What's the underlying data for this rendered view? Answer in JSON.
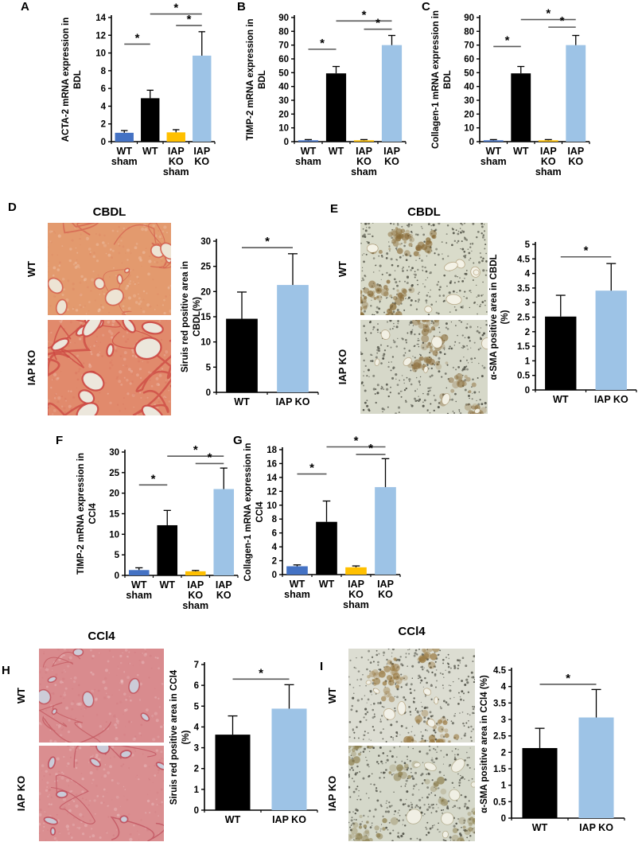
{
  "colors": {
    "background": "#ffffff",
    "axis": "#000000",
    "sig_line": "#595959",
    "bar_blue": "#4472c4",
    "bar_black": "#000000",
    "bar_yellow": "#ffc000",
    "bar_lightblue": "#9dc3e6"
  },
  "panels": {
    "A": {
      "letter": "A"
    },
    "B": {
      "letter": "B"
    },
    "C": {
      "letter": "C"
    },
    "D": {
      "letter": "D",
      "title": "CBDL",
      "rows": [
        {
          "label": "WT"
        },
        {
          "label": "IAP KO"
        }
      ]
    },
    "E": {
      "letter": "E",
      "title": "CBDL",
      "rows": [
        {
          "label": "WT"
        },
        {
          "label": "IAP KO"
        }
      ]
    },
    "F": {
      "letter": "F"
    },
    "G": {
      "letter": "G"
    },
    "H": {
      "letter": "H",
      "title": "CCl4",
      "rows": [
        {
          "label": "WT"
        },
        {
          "label": "IAP KO"
        }
      ]
    },
    "I": {
      "letter": "I",
      "title": "CCl4",
      "rows": [
        {
          "label": "WT"
        },
        {
          "label": "IAP KO"
        }
      ]
    }
  },
  "micrographs": {
    "D_WT": {
      "stain": "sirius-red",
      "base": "#e39a6e",
      "streak": "#d4604f",
      "vessel": "#ede4d4",
      "density": 0.5,
      "vessel_scale": 1.0
    },
    "D_KO": {
      "stain": "sirius-red",
      "base": "#e18a6c",
      "streak": "#cc4742",
      "vessel": "#ece7dc",
      "density": 1.0,
      "vessel_scale": 1.6
    },
    "E_WT": {
      "stain": "ihc",
      "base": "#d9dbca",
      "dot": "#55564a",
      "brown": "#8a6c38",
      "vessel": "#f4f2e6",
      "density": 0.6
    },
    "E_KO": {
      "stain": "ihc",
      "base": "#d6d8c9",
      "dot": "#4d4e44",
      "brown": "#927647",
      "vessel": "#f2f0e4",
      "density": 0.8
    },
    "H_WT": {
      "stain": "sirius-red",
      "base": "#d98b8e",
      "streak": "#c2555e",
      "vessel": "#ccccd8",
      "density": 0.35,
      "vessel_scale": 0.8
    },
    "H_KO": {
      "stain": "sirius-red",
      "base": "#da8e90",
      "streak": "#bf4f5c",
      "vessel": "#c9cbd8",
      "density": 0.55,
      "vessel_scale": 0.8
    },
    "I_WT": {
      "stain": "ihc",
      "base": "#dcddd2",
      "dot": "#53544a",
      "brown": "#9a7a42",
      "vessel": "#f2f1e8",
      "density": 0.5
    },
    "I_KO": {
      "stain": "ihc",
      "base": "#d5d8ca",
      "dot": "#4f5046",
      "brown": "#8e8050",
      "vessel": "#f0efe4",
      "density": 0.7
    }
  },
  "chart_data": [
    {
      "id": "A",
      "panel": "A",
      "type": "bar",
      "ylabel_lines": [
        "ACTA-2 mRNA expression in",
        "BDL"
      ],
      "ylim": [
        0,
        14
      ],
      "ytick": 2,
      "categories": [
        "WT\nsham",
        "WT",
        "IAP\nKO\nsham",
        "IAP\nKO"
      ],
      "values": [
        1.0,
        4.9,
        1.05,
        9.7
      ],
      "errors": [
        0.25,
        0.9,
        0.3,
        2.7
      ],
      "bar_colors": [
        "#4472c4",
        "#000000",
        "#ffc000",
        "#9dc3e6"
      ],
      "significance": [
        {
          "from": 0,
          "to": 1,
          "y": 11,
          "label": "*"
        },
        {
          "from": 1,
          "to": 3,
          "y": 14.4,
          "label": "*"
        },
        {
          "from": 2,
          "to": 3,
          "y": 13.1,
          "label": "*"
        }
      ]
    },
    {
      "id": "B",
      "panel": "B",
      "type": "bar",
      "ylabel_lines": [
        "TIMP-2 mRNA expression in",
        "BDL"
      ],
      "ylim": [
        0,
        90
      ],
      "ytick": 10,
      "categories": [
        "WT\nsham",
        "WT",
        "IAP\nKO\nsham",
        "IAP\nKO"
      ],
      "values": [
        1.0,
        49.5,
        1.0,
        70.0
      ],
      "errors": [
        0.5,
        5.0,
        0.5,
        7.0
      ],
      "bar_colors": [
        "#4472c4",
        "#000000",
        "#ffc000",
        "#9dc3e6"
      ],
      "significance": [
        {
          "from": 0,
          "to": 1,
          "y": 67,
          "label": "*"
        },
        {
          "from": 1,
          "to": 3,
          "y": 87.5,
          "label": "*"
        },
        {
          "from": 2,
          "to": 3,
          "y": 81.5,
          "label": "*"
        }
      ]
    },
    {
      "id": "C",
      "panel": "C",
      "type": "bar",
      "ylabel_lines": [
        "Collagen-1 mRNA expression in",
        "BDL"
      ],
      "ylim": [
        0,
        90
      ],
      "ytick": 10,
      "categories": [
        "WT\nsham",
        "WT",
        "IAP\nKO\nsham",
        "IAP\nKO"
      ],
      "values": [
        1.0,
        49.5,
        1.0,
        70.0
      ],
      "errors": [
        0.5,
        5.0,
        0.5,
        7.0
      ],
      "bar_colors": [
        "#4472c4",
        "#000000",
        "#ffc000",
        "#9dc3e6"
      ],
      "significance": [
        {
          "from": 0,
          "to": 1,
          "y": 69,
          "label": "*"
        },
        {
          "from": 1,
          "to": 3,
          "y": 88.5,
          "label": "*"
        },
        {
          "from": 2,
          "to": 3,
          "y": 83,
          "label": "*"
        }
      ]
    },
    {
      "id": "D",
      "panel": "D",
      "type": "bar",
      "ylabel_lines": [
        "Siruis red positive area in",
        "CBDL(%)"
      ],
      "ylim": [
        0,
        30
      ],
      "ytick": 5,
      "categories": [
        "WT",
        "IAP KO"
      ],
      "values": [
        14.6,
        21.3
      ],
      "errors": [
        5.3,
        6.2
      ],
      "bar_colors": [
        "#000000",
        "#9dc3e6"
      ],
      "significance": [
        {
          "from": 0,
          "to": 1,
          "y": 28.7,
          "label": "*"
        }
      ]
    },
    {
      "id": "E",
      "panel": "E",
      "type": "bar",
      "ylabel_lines": [
        "α-SMA positive area in CBDL",
        "(%)"
      ],
      "ylim": [
        0,
        5
      ],
      "ytick": 0.5,
      "categories": [
        "WT",
        "IAP KO"
      ],
      "values": [
        2.52,
        3.41
      ],
      "errors": [
        0.73,
        0.93
      ],
      "bar_colors": [
        "#000000",
        "#9dc3e6"
      ],
      "significance": [
        {
          "from": 0,
          "to": 1,
          "y": 4.57,
          "label": "*"
        }
      ]
    },
    {
      "id": "F",
      "panel": "F",
      "type": "bar",
      "ylabel_lines": [
        "TIMP-2 mRNA expression in",
        "CCl4"
      ],
      "ylim": [
        0,
        30
      ],
      "ytick": 5,
      "categories": [
        "WT\nsham",
        "WT",
        "IAP\nKO\nsham",
        "IAP\nKO"
      ],
      "values": [
        1.3,
        12.2,
        1.0,
        21.0
      ],
      "errors": [
        0.55,
        3.6,
        0.2,
        5.1
      ],
      "bar_colors": [
        "#4472c4",
        "#000000",
        "#ffc000",
        "#9dc3e6"
      ],
      "significance": [
        {
          "from": 0,
          "to": 1,
          "y": 22,
          "label": "*"
        },
        {
          "from": 1,
          "to": 3,
          "y": 29,
          "label": "*"
        },
        {
          "from": 2,
          "to": 3,
          "y": 27.2,
          "label": "*"
        }
      ]
    },
    {
      "id": "G",
      "panel": "G",
      "type": "bar",
      "ylabel_lines": [
        "Collagen-1 mRNA expression in",
        "CCl4"
      ],
      "ylim": [
        0,
        18
      ],
      "ytick": 2,
      "categories": [
        "WT\nsham",
        "WT",
        "IAP\nKO\nsham",
        "IAP\nKO"
      ],
      "values": [
        1.2,
        7.6,
        1.05,
        12.6
      ],
      "errors": [
        0.2,
        3.0,
        0.2,
        4.1
      ],
      "bar_colors": [
        "#4472c4",
        "#000000",
        "#ffc000",
        "#9dc3e6"
      ],
      "significance": [
        {
          "from": 0,
          "to": 1,
          "y": 14.5,
          "label": "*"
        },
        {
          "from": 1,
          "to": 3,
          "y": 18.4,
          "label": "*"
        },
        {
          "from": 2,
          "to": 3,
          "y": 17.3,
          "label": "*"
        }
      ]
    },
    {
      "id": "H",
      "panel": "H",
      "type": "bar",
      "ylabel_lines": [
        "Siruis red positive area in CCl4",
        "(%)"
      ],
      "ylim": [
        0,
        7
      ],
      "ytick": 1,
      "categories": [
        "WT",
        "IAP KO"
      ],
      "values": [
        3.63,
        4.88
      ],
      "errors": [
        0.9,
        1.15
      ],
      "bar_colors": [
        "#000000",
        "#9dc3e6"
      ],
      "significance": [
        {
          "from": 0,
          "to": 1,
          "y": 6.3,
          "label": "*"
        }
      ]
    },
    {
      "id": "I",
      "panel": "I",
      "type": "bar",
      "ylabel_lines": [
        "α-SMA positive area in CCl4 (%)"
      ],
      "ylim": [
        0,
        4.5
      ],
      "ytick": 0.5,
      "categories": [
        "WT",
        "IAP KO"
      ],
      "values": [
        2.13,
        3.06
      ],
      "errors": [
        0.6,
        0.85
      ],
      "bar_colors": [
        "#000000",
        "#9dc3e6"
      ],
      "significance": [
        {
          "from": 0,
          "to": 1,
          "y": 4.07,
          "label": "*"
        }
      ]
    }
  ]
}
